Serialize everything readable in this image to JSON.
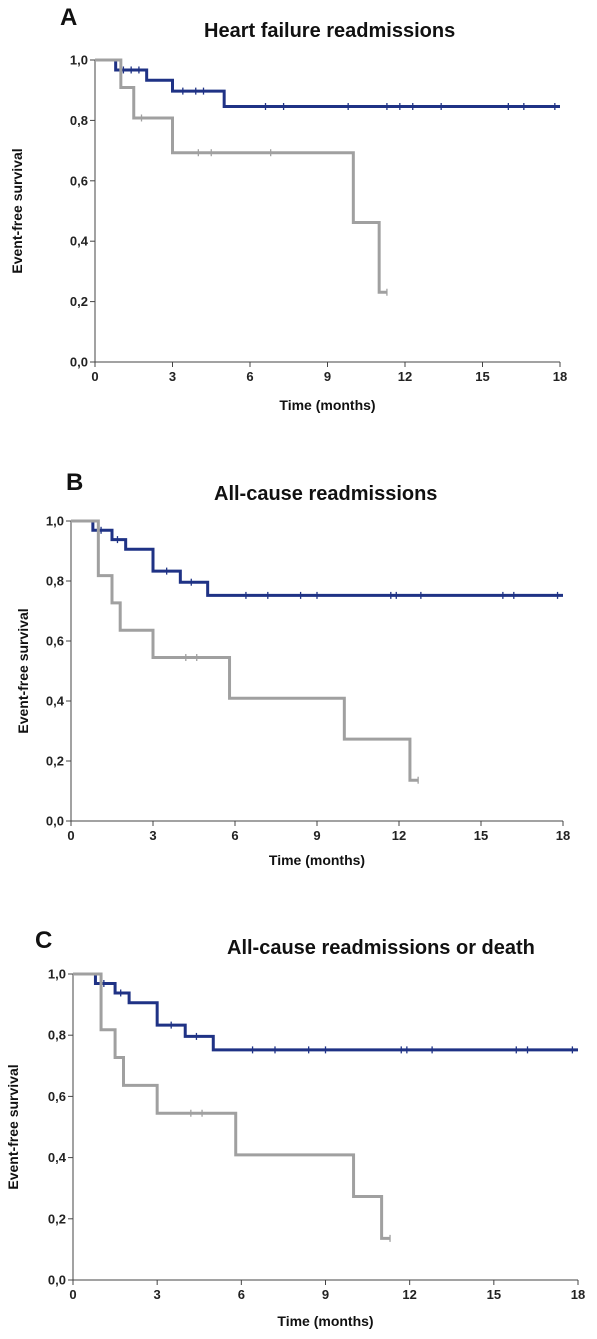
{
  "colors": {
    "group_dark": "#1f3285",
    "group_light": "#a0a0a0",
    "axis": "#444444"
  },
  "chart_data": [
    {
      "type": "line",
      "panel": "A",
      "title": "Heart failure readmissions",
      "xlabel": "Time (months)",
      "ylabel": "Event-free survival",
      "xlim": [
        0,
        18
      ],
      "ylim": [
        0,
        1
      ],
      "x_ticks": [
        "0",
        "3",
        "6",
        "9",
        "12",
        "15",
        "18"
      ],
      "y_ticks": [
        "0,0",
        "0,2",
        "0,4",
        "0,6",
        "0,8",
        "1,0"
      ],
      "series": [
        {
          "color": "#1f3285",
          "steps": [
            [
              0,
              1.0
            ],
            [
              0.8,
              0.967
            ],
            [
              2.0,
              0.933
            ],
            [
              3.0,
              0.897
            ],
            [
              5.0,
              0.846
            ],
            [
              18,
              0.846
            ]
          ],
          "censored": [
            [
              1.1,
              0.967
            ],
            [
              1.4,
              0.967
            ],
            [
              1.7,
              0.967
            ],
            [
              3.4,
              0.897
            ],
            [
              3.9,
              0.897
            ],
            [
              4.2,
              0.897
            ],
            [
              6.6,
              0.846
            ],
            [
              7.3,
              0.846
            ],
            [
              9.8,
              0.846
            ],
            [
              11.3,
              0.846
            ],
            [
              11.8,
              0.846
            ],
            [
              12.3,
              0.846
            ],
            [
              13.4,
              0.846
            ],
            [
              16.0,
              0.846
            ],
            [
              16.6,
              0.846
            ],
            [
              17.8,
              0.846
            ]
          ]
        },
        {
          "color": "#a0a0a0",
          "steps": [
            [
              0,
              1.0
            ],
            [
              1.0,
              0.909
            ],
            [
              1.5,
              0.808
            ],
            [
              3.0,
              0.693
            ],
            [
              10.0,
              0.462
            ],
            [
              11.0,
              0.231
            ],
            [
              11.3,
              0.231
            ]
          ],
          "censored": [
            [
              1.8,
              0.808
            ],
            [
              4.0,
              0.693
            ],
            [
              4.5,
              0.693
            ],
            [
              6.8,
              0.693
            ],
            [
              11.3,
              0.231
            ]
          ]
        }
      ]
    },
    {
      "type": "line",
      "panel": "B",
      "title": "All-cause readmissions",
      "xlabel": "Time (months)",
      "ylabel": "Event-free survival",
      "xlim": [
        0,
        18
      ],
      "ylim": [
        0,
        1
      ],
      "x_ticks": [
        "0",
        "3",
        "6",
        "9",
        "12",
        "15",
        "18"
      ],
      "y_ticks": [
        "0,0",
        "0,2",
        "0,4",
        "0,6",
        "0,8",
        "1,0"
      ],
      "series": [
        {
          "color": "#1f3285",
          "steps": [
            [
              0,
              1.0
            ],
            [
              0.8,
              0.969
            ],
            [
              1.5,
              0.938
            ],
            [
              2.0,
              0.906
            ],
            [
              3.0,
              0.833
            ],
            [
              4.0,
              0.796
            ],
            [
              5.0,
              0.752
            ],
            [
              18,
              0.752
            ]
          ],
          "censored": [
            [
              1.1,
              0.969
            ],
            [
              1.7,
              0.938
            ],
            [
              3.5,
              0.833
            ],
            [
              4.4,
              0.796
            ],
            [
              6.4,
              0.752
            ],
            [
              7.2,
              0.752
            ],
            [
              8.4,
              0.752
            ],
            [
              9.0,
              0.752
            ],
            [
              11.7,
              0.752
            ],
            [
              11.9,
              0.752
            ],
            [
              12.8,
              0.752
            ],
            [
              15.8,
              0.752
            ],
            [
              16.2,
              0.752
            ],
            [
              17.8,
              0.752
            ]
          ]
        },
        {
          "color": "#a0a0a0",
          "steps": [
            [
              0,
              1.0
            ],
            [
              1.0,
              0.818
            ],
            [
              1.5,
              0.727
            ],
            [
              1.8,
              0.636
            ],
            [
              3.0,
              0.545
            ],
            [
              5.8,
              0.409
            ],
            [
              10.0,
              0.273
            ],
            [
              12.4,
              0.136
            ],
            [
              12.7,
              0.136
            ]
          ],
          "censored": [
            [
              4.2,
              0.545
            ],
            [
              4.6,
              0.545
            ],
            [
              12.7,
              0.136
            ]
          ]
        }
      ]
    },
    {
      "type": "line",
      "panel": "C",
      "title": "All-cause readmissions or death",
      "xlabel": "Time (months)",
      "ylabel": "Event-free survival",
      "xlim": [
        0,
        18
      ],
      "ylim": [
        0,
        1
      ],
      "x_ticks": [
        "0",
        "3",
        "6",
        "9",
        "12",
        "15",
        "18"
      ],
      "y_ticks": [
        "0,0",
        "0,2",
        "0,4",
        "0,6",
        "0,8",
        "1,0"
      ],
      "series": [
        {
          "color": "#1f3285",
          "steps": [
            [
              0,
              1.0
            ],
            [
              0.8,
              0.969
            ],
            [
              1.5,
              0.938
            ],
            [
              2.0,
              0.906
            ],
            [
              3.0,
              0.833
            ],
            [
              4.0,
              0.796
            ],
            [
              5.0,
              0.752
            ],
            [
              18,
              0.752
            ]
          ],
          "censored": [
            [
              1.1,
              0.969
            ],
            [
              1.7,
              0.938
            ],
            [
              3.5,
              0.833
            ],
            [
              4.4,
              0.796
            ],
            [
              6.4,
              0.752
            ],
            [
              7.2,
              0.752
            ],
            [
              8.4,
              0.752
            ],
            [
              9.0,
              0.752
            ],
            [
              11.7,
              0.752
            ],
            [
              11.9,
              0.752
            ],
            [
              12.8,
              0.752
            ],
            [
              15.8,
              0.752
            ],
            [
              16.2,
              0.752
            ],
            [
              17.8,
              0.752
            ]
          ]
        },
        {
          "color": "#a0a0a0",
          "steps": [
            [
              0,
              1.0
            ],
            [
              1.0,
              0.818
            ],
            [
              1.5,
              0.727
            ],
            [
              1.8,
              0.636
            ],
            [
              3.0,
              0.545
            ],
            [
              5.8,
              0.409
            ],
            [
              10.0,
              0.273
            ],
            [
              11.0,
              0.136
            ],
            [
              11.3,
              0.136
            ]
          ],
          "censored": [
            [
              4.2,
              0.545
            ],
            [
              4.6,
              0.545
            ],
            [
              11.3,
              0.136
            ]
          ]
        }
      ]
    }
  ]
}
